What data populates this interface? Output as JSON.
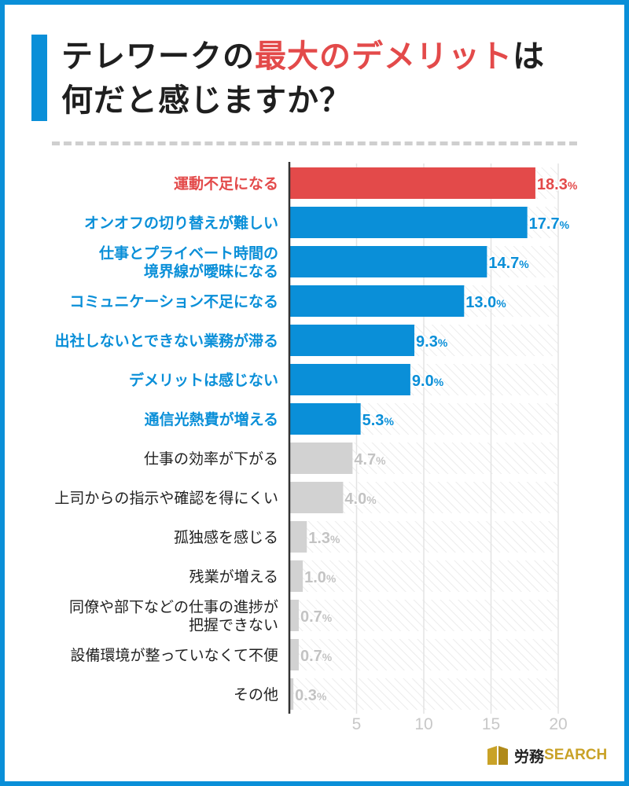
{
  "title": {
    "line1_prefix": "テレワークの",
    "line1_highlight": "最大のデメリット",
    "line1_suffix": "は",
    "line2": "何だと感じますか？"
  },
  "colors": {
    "accent_red": "#e34a4a",
    "accent_blue": "#0a8fd8",
    "muted_gray": "#d2d2d2",
    "muted_label": "#c3c3c3"
  },
  "chart_data": {
    "type": "bar",
    "orientation": "horizontal",
    "title": "テレワークの最大のデメリットは何だと感じますか？",
    "xlim": [
      0,
      20
    ],
    "xticks": [
      "5",
      "10",
      "15",
      "20"
    ],
    "xtick_values": [
      5,
      10,
      15,
      20
    ],
    "grid": true,
    "categories": [
      {
        "label": [
          "運動不足になる"
        ],
        "value": 18.3,
        "display": "18.3%",
        "style": "red"
      },
      {
        "label": [
          "オンオフの切り替えが難しい"
        ],
        "value": 17.7,
        "display": "17.7%",
        "style": "blue"
      },
      {
        "label": [
          "仕事とプライベート時間の",
          "境界線が曖昧になる"
        ],
        "value": 14.7,
        "display": "14.7%",
        "style": "blue"
      },
      {
        "label": [
          "コミュニケーション不足になる"
        ],
        "value": 13.0,
        "display": "13.0%",
        "style": "blue"
      },
      {
        "label": [
          "出社しないとできない業務が滞る"
        ],
        "value": 9.3,
        "display": "9.3%",
        "style": "blue"
      },
      {
        "label": [
          "デメリットは感じない"
        ],
        "value": 9.0,
        "display": "9.0%",
        "style": "blue"
      },
      {
        "label": [
          "通信光熱費が増える"
        ],
        "value": 5.3,
        "display": "5.3%",
        "style": "blue"
      },
      {
        "label": [
          "仕事の効率が下がる"
        ],
        "value": 4.7,
        "display": "4.7%",
        "style": "gray"
      },
      {
        "label": [
          "上司からの指示や確認を得にくい"
        ],
        "value": 4.0,
        "display": "4.0%",
        "style": "gray"
      },
      {
        "label": [
          "孤独感を感じる"
        ],
        "value": 1.3,
        "display": "1.3%",
        "style": "gray"
      },
      {
        "label": [
          "残業が増える"
        ],
        "value": 1.0,
        "display": "1.0%",
        "style": "gray"
      },
      {
        "label": [
          "同僚や部下などの仕事の進捗が",
          "把握できない"
        ],
        "value": 0.7,
        "display": "0.7%",
        "style": "gray"
      },
      {
        "label": [
          "設備環境が整っていなくて不便"
        ],
        "value": 0.7,
        "display": "0.7%",
        "style": "gray"
      },
      {
        "label": [
          "その他"
        ],
        "value": 0.3,
        "display": "0.3%",
        "style": "gray"
      }
    ]
  },
  "logo": {
    "jp": "労務",
    "en": "SEARCH"
  }
}
